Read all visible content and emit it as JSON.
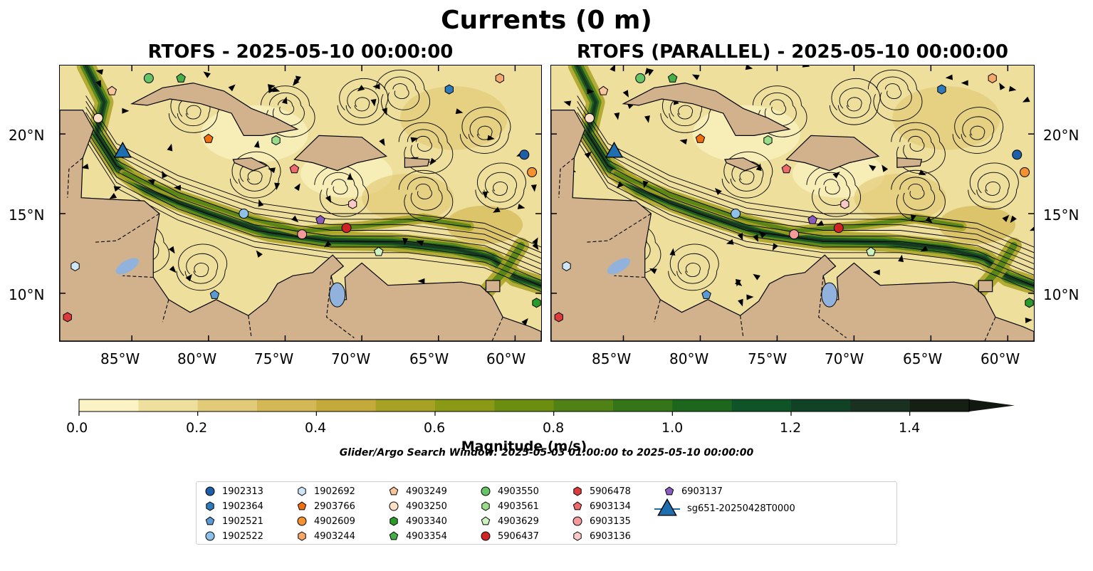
{
  "figure": {
    "suptitle": "Currents (0 m)",
    "panels": [
      {
        "title": "RTOFS - 2025-05-10 00:00:00"
      },
      {
        "title": "RTOFS (PARALLEL) - 2025-05-10 00:00:00"
      }
    ],
    "lon_ticks": [
      "85°W",
      "80°W",
      "75°W",
      "70°W",
      "65°W",
      "60°W"
    ],
    "lat_ticks": [
      "20°N",
      "15°N",
      "10°N"
    ],
    "extent": {
      "lon_min": -89.7,
      "lon_max": -58.3,
      "lat_min": 7.0,
      "lat_max": 24.3
    }
  },
  "colorbar": {
    "label": "Magnitude (m/s)",
    "ticks": [
      "0.0",
      "0.2",
      "0.4",
      "0.6",
      "0.8",
      "1.0",
      "1.2",
      "1.4"
    ],
    "min": 0.0,
    "max": 1.5,
    "extend": "max",
    "colors": [
      "#fbf3c3",
      "#eedf9c",
      "#e2cb78",
      "#d4b856",
      "#c4aa3a",
      "#a8a224",
      "#8b9a14",
      "#6c8e10",
      "#4f8114",
      "#357418",
      "#1d661e",
      "#0e5426",
      "#114226",
      "#1a3020",
      "#151f14"
    ]
  },
  "search_window": "Glider/Argo Search Window: 2025-05-03 01:00:00 to 2025-05-10 00:00:00",
  "legend": [
    {
      "label": "1902313",
      "marker": "circle",
      "color": "#1f5fa8"
    },
    {
      "label": "1902364",
      "marker": "hexagon",
      "color": "#2f7ab8"
    },
    {
      "label": "1902521",
      "marker": "pentagon",
      "color": "#5b9bd5"
    },
    {
      "label": "1902522",
      "marker": "circle",
      "color": "#8ec1ea"
    },
    {
      "label": "1902692",
      "marker": "hexagon",
      "color": "#cfe6f8"
    },
    {
      "label": "2903766",
      "marker": "pentagon",
      "color": "#f07010"
    },
    {
      "label": "4902609",
      "marker": "circle",
      "color": "#f5922f"
    },
    {
      "label": "4903244",
      "marker": "hexagon",
      "color": "#f7a869"
    },
    {
      "label": "4903249",
      "marker": "pentagon",
      "color": "#f9c59a"
    },
    {
      "label": "4903250",
      "marker": "circle",
      "color": "#fde0c5"
    },
    {
      "label": "4903340",
      "marker": "hexagon",
      "color": "#2a9a2a"
    },
    {
      "label": "4903354",
      "marker": "pentagon",
      "color": "#45b045"
    },
    {
      "label": "4903550",
      "marker": "circle",
      "color": "#66c466"
    },
    {
      "label": "4903561",
      "marker": "hexagon",
      "color": "#99dd88"
    },
    {
      "label": "4903629",
      "marker": "pentagon",
      "color": "#ccf2c0"
    },
    {
      "label": "5906437",
      "marker": "circle",
      "color": "#d02424"
    },
    {
      "label": "5906478",
      "marker": "hexagon",
      "color": "#dd3b3b"
    },
    {
      "label": "6903134",
      "marker": "pentagon",
      "color": "#ef6a6a"
    },
    {
      "label": "6903135",
      "marker": "circle",
      "color": "#f59a9a"
    },
    {
      "label": "6903136",
      "marker": "hexagon",
      "color": "#fbc8c8"
    },
    {
      "label": "6903137",
      "marker": "pentagon",
      "color": "#8a5cc0"
    },
    {
      "label": "sg651-20250428T0000",
      "marker": "triangle",
      "color": "#1f6fb0"
    }
  ],
  "markers": [
    {
      "id": "1902313",
      "lon": -59.4,
      "lat": 18.7
    },
    {
      "id": "1902364",
      "lon": -64.3,
      "lat": 22.8
    },
    {
      "id": "1902521",
      "lon": -79.6,
      "lat": 9.9
    },
    {
      "id": "1902522",
      "lon": -77.7,
      "lat": 15.0
    },
    {
      "id": "1902692",
      "lon": -88.7,
      "lat": 11.7
    },
    {
      "id": "2903766",
      "lon": -80.0,
      "lat": 19.7
    },
    {
      "id": "4902609",
      "lon": -58.9,
      "lat": 17.6
    },
    {
      "id": "4903244",
      "lon": -61.0,
      "lat": 23.5
    },
    {
      "id": "4903249",
      "lon": -86.3,
      "lat": 22.7
    },
    {
      "id": "4903250",
      "lon": -87.2,
      "lat": 21.0
    },
    {
      "id": "4903340",
      "lon": -58.6,
      "lat": 9.4
    },
    {
      "id": "4903354",
      "lon": -81.8,
      "lat": 23.5
    },
    {
      "id": "4903550",
      "lon": -83.9,
      "lat": 23.5
    },
    {
      "id": "4903561",
      "lon": -75.6,
      "lat": 19.6
    },
    {
      "id": "4903629",
      "lon": -68.9,
      "lat": 12.6
    },
    {
      "id": "5906437",
      "lon": -71.0,
      "lat": 14.1
    },
    {
      "id": "5906478",
      "lon": -89.2,
      "lat": 8.5
    },
    {
      "id": "6903134",
      "lon": -74.4,
      "lat": 17.8
    },
    {
      "id": "6903135",
      "lon": -73.9,
      "lat": 13.7
    },
    {
      "id": "6903136",
      "lon": -70.6,
      "lat": 15.6
    },
    {
      "id": "6903137",
      "lon": -72.7,
      "lat": 14.6
    },
    {
      "id": "sg651-20250428T0000",
      "lon": -85.6,
      "lat": 18.9
    }
  ]
}
